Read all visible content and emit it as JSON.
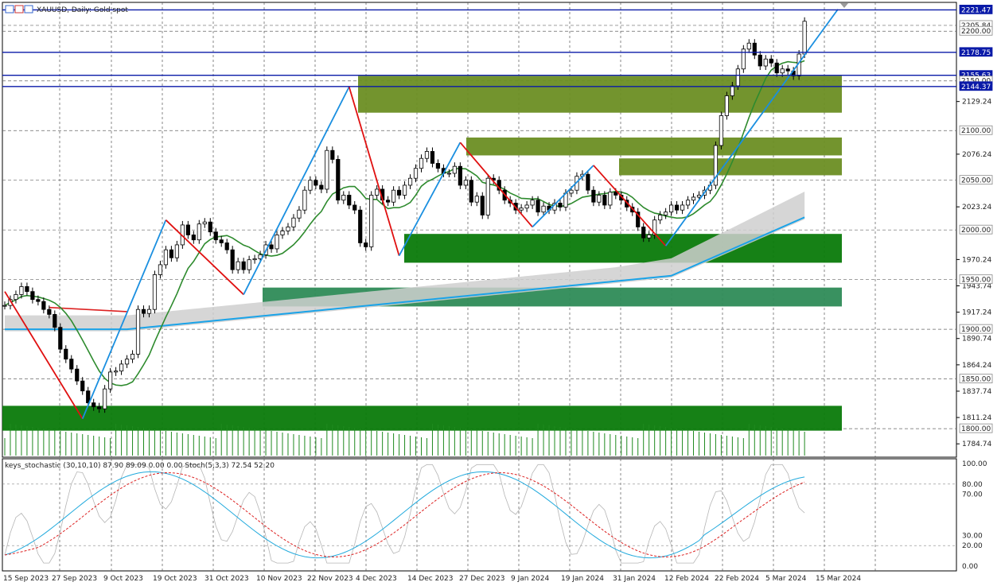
{
  "chart_data": {
    "type": "candlestick",
    "symbol_header": "XAUUSD, Daily: Gold spot",
    "colors": {
      "up": "#ffffff",
      "down": "#000000",
      "support_zone": "#0a7a0a",
      "resistance_zone": "#6b8e23",
      "level_line": "#0a1aa8",
      "ma_green": "#2e8b2e",
      "ma_blue": "#1aa3e8",
      "zigzag_up": "#1a8fe0",
      "zigzag_down": "#e01010",
      "stoch_main": "#22aadd",
      "stoch_signal": "#dd2222"
    },
    "ylim": [
      1771.3,
      2229
    ],
    "price_ticks": [
      "1784.74",
      "1811.24",
      "1837.74",
      "1864.24",
      "1890.74",
      "1917.24",
      "1943.74",
      "1970.24",
      "2023.24",
      "2076.24",
      "2129.24"
    ],
    "price_level_tags": [
      {
        "value": 2221.47,
        "label": "2221.47",
        "kind": "blue"
      },
      {
        "value": 2205.84,
        "label": "2205.84",
        "kind": "gray"
      },
      {
        "value": 2200.0,
        "label": "2200.00",
        "kind": "gray"
      },
      {
        "value": 2178.75,
        "label": "2178.75",
        "kind": "blue"
      },
      {
        "value": 2155.63,
        "label": "2155.63",
        "kind": "blue"
      },
      {
        "value": 2150.0,
        "label": "2150.00",
        "kind": "gray"
      },
      {
        "value": 2144.37,
        "label": "2144.37",
        "kind": "blue"
      },
      {
        "value": 2100.0,
        "label": "2100.00",
        "kind": "gray"
      },
      {
        "value": 2050.0,
        "label": "2050.00",
        "kind": "gray"
      },
      {
        "value": 2000.0,
        "label": "2000.00",
        "kind": "gray"
      },
      {
        "value": 1950.0,
        "label": "1950.00",
        "kind": "gray"
      },
      {
        "value": 1900.0,
        "label": "1900.00",
        "kind": "gray"
      },
      {
        "value": 1850.0,
        "label": "1850.00",
        "kind": "gray"
      },
      {
        "value": 1800.0,
        "label": "1800.00",
        "kind": "gray"
      }
    ],
    "x_labels": [
      "15 Sep 2023",
      "27 Sep 2023",
      "9 Oct 2023",
      "19 Oct 2023",
      "31 Oct 2023",
      "10 Nov 2023",
      "22 Nov 2023",
      "4 Dec 2023",
      "14 Dec 2023",
      "27 Dec 2023",
      "9 Jan 2024",
      "19 Jan 2024",
      "31 Jan 2024",
      "12 Feb 2024",
      "22 Feb 2024",
      "5 Mar 2024",
      "15 Mar 2024"
    ],
    "ohlc_close": [
      1924,
      1930,
      1935,
      1943,
      1938,
      1930,
      1928,
      1920,
      1915,
      1902,
      1880,
      1870,
      1860,
      1848,
      1838,
      1826,
      1822,
      1820,
      1840,
      1857,
      1858,
      1865,
      1870,
      1875,
      1920,
      1916,
      1920,
      1955,
      1965,
      1980,
      1972,
      1985,
      2005,
      1995,
      1990,
      2006,
      2008,
      1998,
      1990,
      1987,
      1980,
      1960,
      1968,
      1960,
      1970,
      1971,
      1975,
      1985,
      1981,
      1995,
      1999,
      2003,
      2012,
      2020,
      2040,
      2050,
      2045,
      2041,
      2080,
      2071,
      2030,
      2035,
      2025,
      2020,
      1987,
      1983,
      2035,
      2041,
      2030,
      2028,
      2040,
      2035,
      2045,
      2052,
      2062,
      2072,
      2079,
      2067,
      2062,
      2057,
      2057,
      2064,
      2045,
      2050,
      2028,
      2034,
      2015,
      2052,
      2050,
      2040,
      2030,
      2027,
      2020,
      2022,
      2025,
      2030,
      2018,
      2024,
      2020,
      2027,
      2023,
      2037,
      2040,
      2054,
      2056,
      2040,
      2028,
      2035,
      2025,
      2038,
      2035,
      2030,
      2023,
      2018,
      2003,
      1992,
      1995,
      2010,
      2015,
      2018,
      2025,
      2020,
      2025,
      2030,
      2033,
      2035,
      2040,
      2045,
      2085,
      2115,
      2135,
      2145,
      2162,
      2182,
      2188,
      2176,
      2165,
      2172,
      2168,
      2158,
      2162,
      2160,
      2155,
      2177,
      2210
    ],
    "levels": [
      2221.47,
      2178.75,
      2155.63,
      2144.37
    ],
    "zones": [
      {
        "kind": "resistance",
        "from": 2118,
        "to": 2155
      },
      {
        "kind": "resistance",
        "from": 2075,
        "to": 2093
      },
      {
        "kind": "resistance",
        "from": 2055,
        "to": 2072
      },
      {
        "kind": "support",
        "from": 1967,
        "to": 1996
      },
      {
        "kind": "support",
        "from": 1923,
        "to": 1942
      },
      {
        "kind": "support",
        "from": 1798,
        "to": 1823
      }
    ],
    "zigzag": [
      [
        0,
        1938
      ],
      [
        14,
        1810
      ],
      [
        29,
        2010
      ],
      [
        43,
        1935
      ],
      [
        62,
        2144
      ],
      [
        71,
        1974
      ],
      [
        82,
        2088
      ],
      [
        95,
        2003
      ],
      [
        106,
        2065
      ],
      [
        119,
        1984
      ],
      [
        150,
        2222
      ]
    ],
    "stochastic": {
      "header": "keys_stochastic (30,10,10) 87.90 89.09 0.00 0.00 Stoch(5,3,3) 72.54 52.20",
      "ticks": [
        "100.00",
        "80.00",
        "70.00",
        "30.00",
        "20.00",
        "0.00"
      ],
      "ylim": [
        0,
        100
      ]
    }
  }
}
